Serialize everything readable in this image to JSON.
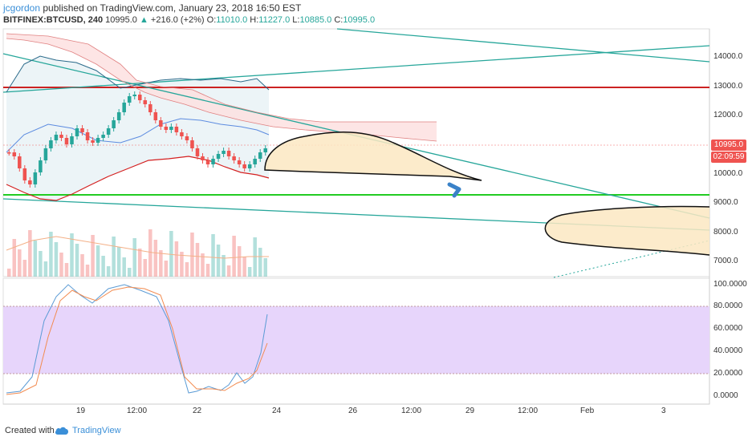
{
  "header": {
    "user": "jcgordon",
    "published": "published on TradingView.com, January 23, 2018 16:50 EST",
    "symbol": "BITFINEX:BTCUSD, 240",
    "last": "10995.0",
    "change": "+216.0 (+2%)",
    "open_label": "O:",
    "open": "11010.0",
    "high_label": "H:",
    "high": "11227.0",
    "low_label": "L:",
    "low": "10885.0",
    "close_label": "C:",
    "close": "10995.0"
  },
  "price_axis": {
    "labels": [
      "14000.0",
      "13000.0",
      "12000.0",
      "10000.0",
      "9000.0",
      "8000.0",
      "7000.0"
    ],
    "current_price": "10995.0",
    "countdown": "02:09:59",
    "current_color": "#ef5350",
    "countdown_color": "#ef5350"
  },
  "osc_axis": {
    "labels": [
      "100.0000",
      "80.0000",
      "60.0000",
      "40.0000",
      "20.0000",
      "0.0000"
    ]
  },
  "time_axis": {
    "labels": [
      "19",
      "12:00",
      "22",
      "24",
      "26",
      "12:00",
      "29",
      "12:00",
      "Feb",
      "3"
    ]
  },
  "footer": {
    "created": "Created with",
    "brand": "TradingView"
  },
  "colors": {
    "up": "#26a69a",
    "down": "#ef5350",
    "support": "#22cc22",
    "resistance": "#cc2222",
    "band_fill": "#f0f6f8",
    "cloud_fill": "#fce4e4",
    "projection_fill": "#fbe7c2",
    "osc_fill": "#e7d5fb"
  }
}
